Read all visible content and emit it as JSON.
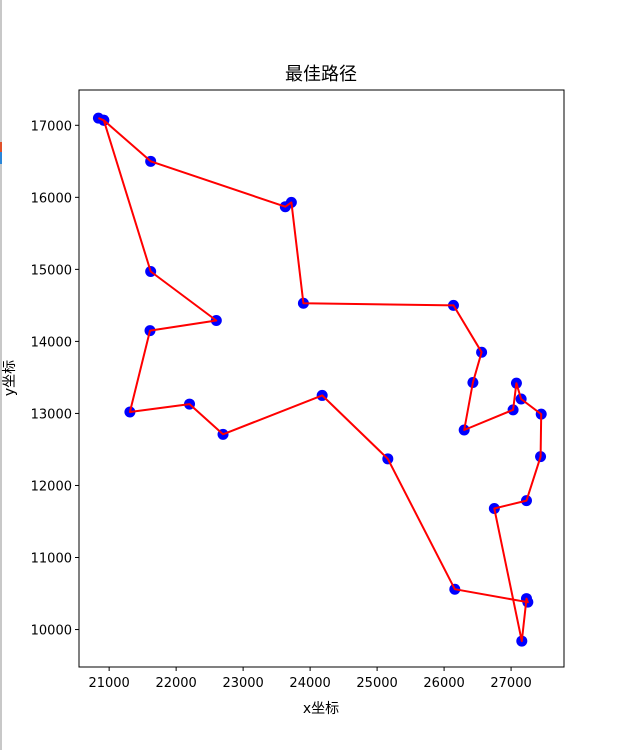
{
  "chart_data": {
    "type": "line",
    "title": "最佳路径",
    "xlabel": "x坐标",
    "ylabel": "y坐标",
    "xlim": [
      20550,
      27790
    ],
    "ylim": [
      9480,
      17490
    ],
    "xticks": [
      21000,
      22000,
      23000,
      24000,
      25000,
      26000,
      27000
    ],
    "yticks": [
      10000,
      11000,
      12000,
      13000,
      14000,
      15000,
      16000,
      17000
    ],
    "grid": false,
    "series": [
      {
        "marker_color": "#0000ff",
        "line_color": "#ff0000",
        "x": [
          20840,
          20920,
          21620,
          23630,
          23720,
          23900,
          26140,
          26560,
          26430,
          26300,
          27030,
          27080,
          27150,
          27450,
          27440,
          27230,
          26750,
          27160,
          27230,
          27250,
          26160,
          25160,
          24180,
          22700,
          22200,
          21310,
          21610,
          22600,
          21620,
          20920
        ],
        "y": [
          17100,
          17070,
          16500,
          15870,
          15930,
          14530,
          14500,
          13850,
          13430,
          12770,
          13050,
          13420,
          13200,
          12990,
          12400,
          11790,
          11680,
          9840,
          10430,
          10380,
          10560,
          12370,
          13250,
          12710,
          13130,
          13020,
          14150,
          14290,
          14970,
          17070
        ]
      }
    ]
  }
}
